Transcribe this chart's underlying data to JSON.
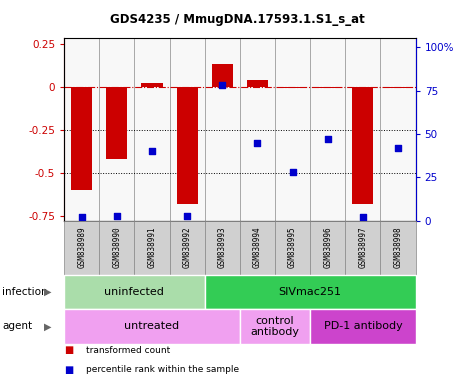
{
  "title": "GDS4235 / MmugDNA.17593.1.S1_s_at",
  "samples": [
    "GSM838989",
    "GSM838990",
    "GSM838991",
    "GSM838992",
    "GSM838993",
    "GSM838994",
    "GSM838995",
    "GSM838996",
    "GSM838997",
    "GSM838998"
  ],
  "transformed_count": [
    -0.6,
    -0.42,
    0.02,
    -0.68,
    0.13,
    0.04,
    -0.01,
    -0.01,
    -0.68,
    -0.01
  ],
  "percentile_rank": [
    2,
    3,
    40,
    3,
    78,
    45,
    28,
    47,
    2,
    42
  ],
  "bar_color": "#cc0000",
  "dot_color": "#0000cc",
  "ylim_left": [
    -0.78,
    0.28
  ],
  "ylim_right": [
    0,
    105
  ],
  "yticks_left": [
    -0.75,
    -0.5,
    -0.25,
    0,
    0.25
  ],
  "yticks_right": [
    0,
    25,
    50,
    75,
    100
  ],
  "ytick_labels_right": [
    "0",
    "25",
    "50",
    "75",
    "100%"
  ],
  "dotted_lines": [
    -0.25,
    -0.5
  ],
  "infection_groups": [
    {
      "label": "uninfected",
      "start": 0,
      "end": 3,
      "color": "#aaddaa"
    },
    {
      "label": "SIVmac251",
      "start": 4,
      "end": 9,
      "color": "#33cc55"
    }
  ],
  "agent_groups": [
    {
      "label": "untreated",
      "start": 0,
      "end": 4,
      "color": "#f0a0f0"
    },
    {
      "label": "control\nantibody",
      "start": 5,
      "end": 6,
      "color": "#f0a0f0"
    },
    {
      "label": "PD-1 antibody",
      "start": 7,
      "end": 9,
      "color": "#cc44cc"
    }
  ],
  "infection_label": "infection",
  "agent_label": "agent",
  "legend_red": "transformed count",
  "legend_blue": "percentile rank within the sample",
  "bg_color": "#ffffff",
  "sample_box_color": "#d0d0d0",
  "bar_width": 0.6
}
